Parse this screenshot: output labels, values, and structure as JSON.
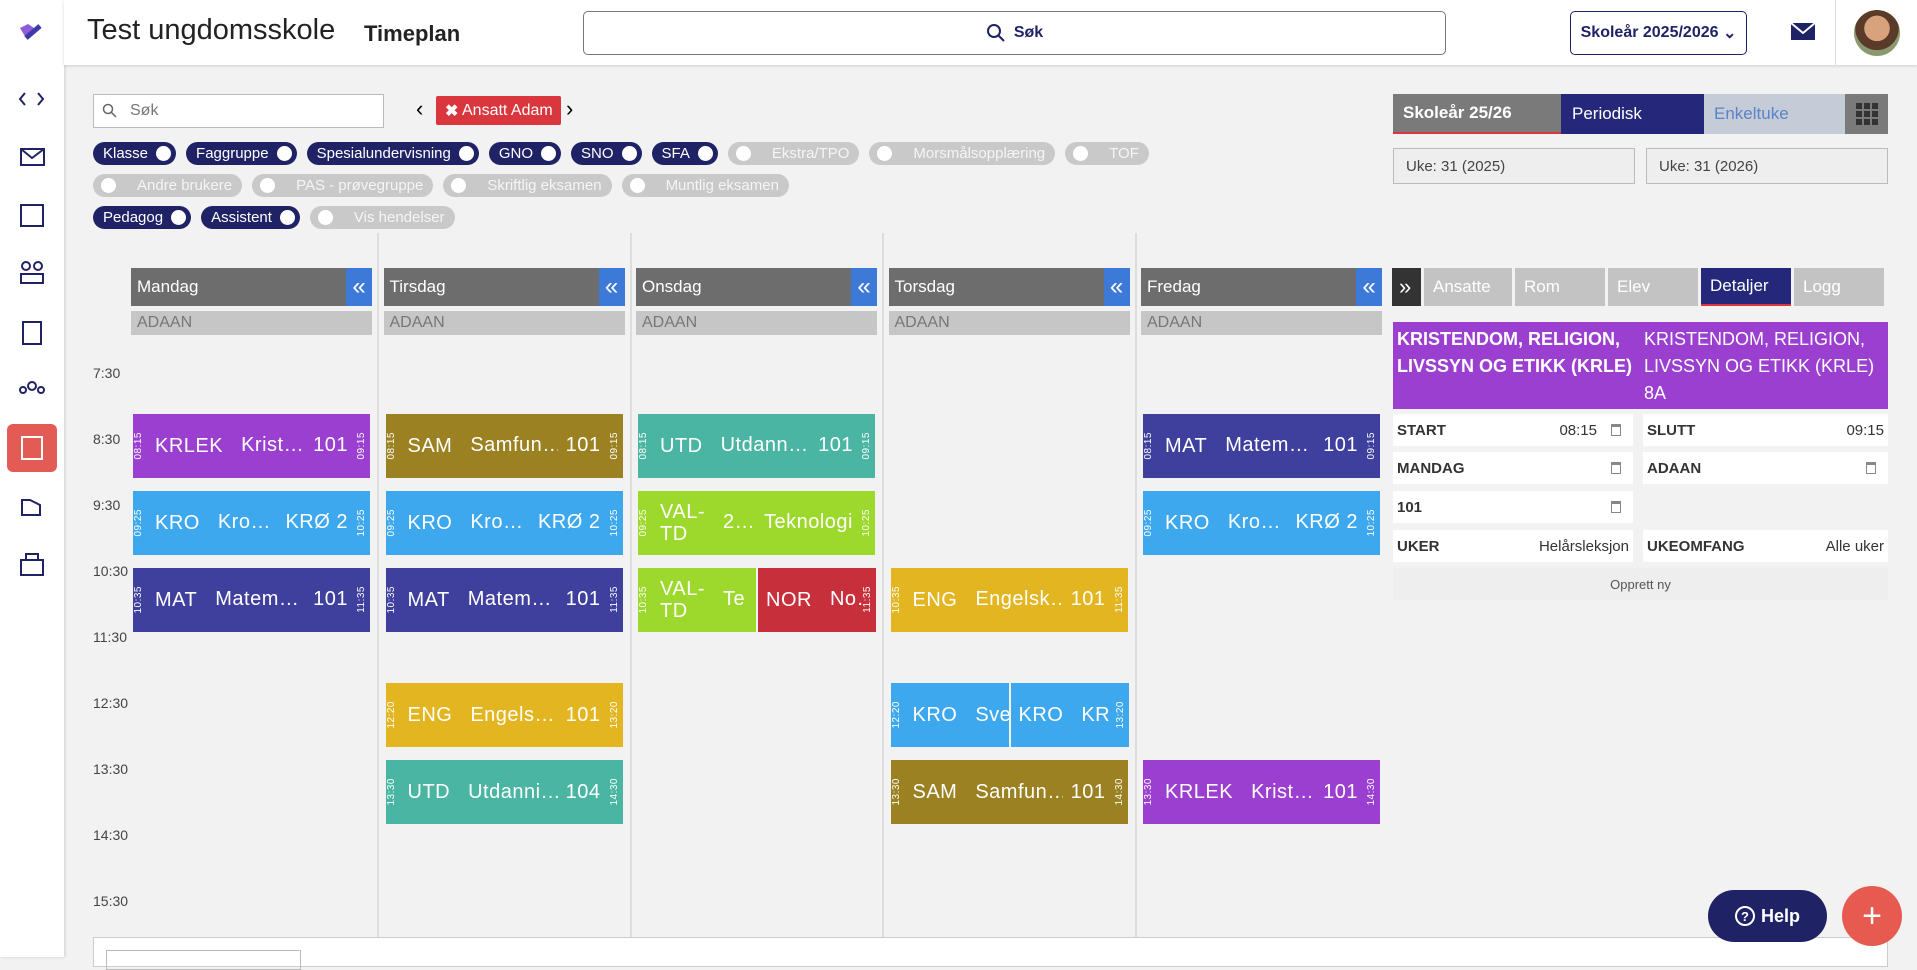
{
  "header": {
    "school": "Test ungdomsskole",
    "page": "Timeplan",
    "search": "Søk",
    "school_year": "Skoleår 2025/2026"
  },
  "toolbar": {
    "search_placeholder": "Søk",
    "chip": "Ansatt Adam"
  },
  "filters": [
    [
      {
        "label": "Klasse",
        "on": true
      },
      {
        "label": "Faggruppe",
        "on": true
      },
      {
        "label": "Spesialundervisning",
        "on": true
      },
      {
        "label": "GNO",
        "on": true
      },
      {
        "label": "SNO",
        "on": true
      },
      {
        "label": "SFA",
        "on": true
      },
      {
        "label": "Ekstra/TPO",
        "on": false
      },
      {
        "label": "Morsmålsopplæring",
        "on": false
      },
      {
        "label": "TOF",
        "on": false
      }
    ],
    [
      {
        "label": "Andre brukere",
        "on": false
      },
      {
        "label": "PAS - prøvegruppe",
        "on": false
      },
      {
        "label": "Skriftlig eksamen",
        "on": false
      },
      {
        "label": "Muntlig eksamen",
        "on": false
      }
    ],
    [
      {
        "label": "Pedagog",
        "on": true
      },
      {
        "label": "Assistent",
        "on": true
      },
      {
        "label": "Vis hendelser",
        "on": false
      }
    ]
  ],
  "view_tabs": [
    "Skoleår 25/26",
    "Periodisk",
    "Enkeltuke"
  ],
  "week_from": "Uke: 31 (2025)",
  "week_to": "Uke: 31 (2026)",
  "collapse_icon": "«",
  "times": [
    "7:30",
    "8:30",
    "9:30",
    "10:30",
    "11:30",
    "12:30",
    "13:30",
    "14:30",
    "15:30"
  ],
  "days": [
    {
      "name": "Mandag",
      "teacher": "ADAAN",
      "lessons": [
        {
          "code": "KRLEK",
          "name": "Krist…",
          "room": "101",
          "start": "08:15",
          "end": "09:15",
          "color": "#9b3fd0"
        },
        {
          "code": "KRO",
          "name": "Kro…",
          "room": "KRØ 2",
          "start": "09:25",
          "end": "10:25",
          "color": "#3ea8ee"
        },
        {
          "code": "MAT",
          "name": "Matem…",
          "room": "101",
          "start": "10:35",
          "end": "11:35",
          "color": "#3f3f9e"
        }
      ]
    },
    {
      "name": "Tirsdag",
      "teacher": "ADAAN",
      "lessons": [
        {
          "code": "SAM",
          "name": "Samfun…",
          "room": "101",
          "start": "08:15",
          "end": "09:15",
          "color": "#9b8121"
        },
        {
          "code": "KRO",
          "name": "Kro…",
          "room": "KRØ 2",
          "start": "09:25",
          "end": "10:25",
          "color": "#3ea8ee"
        },
        {
          "code": "MAT",
          "name": "Matem…",
          "room": "101",
          "start": "10:35",
          "end": "11:35",
          "color": "#3f3f9e"
        },
        {
          "code": "ENG",
          "name": "Engels…",
          "room": "101",
          "start": "12:20",
          "end": "13:20",
          "color": "#e2b521"
        },
        {
          "code": "UTD",
          "name": "Utdanni…",
          "room": "104",
          "start": "13:30",
          "end": "14:30",
          "color": "#4bb5a3"
        }
      ]
    },
    {
      "name": "Onsdag",
      "teacher": "ADAAN",
      "lessons": [
        {
          "code": "UTD",
          "name": "Utdann…",
          "room": "101",
          "start": "08:15",
          "end": "09:15",
          "color": "#4bb5a3"
        },
        {
          "code": "VAL-TD",
          "name": "2…",
          "room": "Teknologi",
          "start": "09:25",
          "end": "10:25",
          "color": "#9dd82c"
        },
        {
          "code": "VAL-TD",
          "name": "Te",
          "start": "10:35",
          "color": "#9dd82c"
        },
        {
          "code": "NOR",
          "name": "No…",
          "end": "11:35",
          "color": "#c72f3b"
        }
      ]
    },
    {
      "name": "Torsdag",
      "teacher": "ADAAN",
      "lessons": [
        {
          "code": "ENG",
          "name": "Engelsk…",
          "room": "101",
          "start": "10:35",
          "end": "11:35",
          "color": "#e2b521"
        },
        {
          "code": "KRO",
          "name": "Sve",
          "start": "12:20",
          "color": "#3ea8ee"
        },
        {
          "code": "KRO",
          "name": "KR",
          "end": "13:20",
          "color": "#3ea8ee"
        },
        {
          "code": "SAM",
          "name": "Samfun…",
          "room": "101",
          "start": "13:30",
          "end": "14:30",
          "color": "#9b8121"
        }
      ]
    },
    {
      "name": "Fredag",
      "teacher": "ADAAN",
      "lessons": [
        {
          "code": "MAT",
          "name": "Matem…",
          "room": "101",
          "start": "08:15",
          "end": "09:15",
          "color": "#3f3f9e"
        },
        {
          "code": "KRO",
          "name": "Kro…",
          "room": "KRØ 2",
          "start": "09:25",
          "end": "10:25",
          "color": "#3ea8ee"
        },
        {
          "code": "KRLEK",
          "name": "Krist…",
          "room": "101",
          "start": "13:30",
          "end": "14:30",
          "color": "#9b3fd0"
        }
      ]
    }
  ],
  "panel_tabs": [
    "»",
    "Ansatte",
    "Rom",
    "Elev",
    "Detaljer",
    "Logg"
  ],
  "details": {
    "subject": "KRISTENDOM, RELIGION, LIVSSYN OG ETIKK (KRLE)",
    "group": "KRISTENDOM, RELIGION, LIVSSYN OG ETIKK (KRLE) 8A",
    "start_label": "START",
    "start": "08:15",
    "end_label": "SLUTT",
    "end": "09:15",
    "day": "MANDAG",
    "teacher": "ADAAN",
    "room": "101",
    "weeks_label": "UKER",
    "weeks": "Helårsleksjon",
    "scope_label": "UKEOMFANG",
    "scope": "Alle uker",
    "create": "Opprett ny"
  },
  "help": "Help"
}
